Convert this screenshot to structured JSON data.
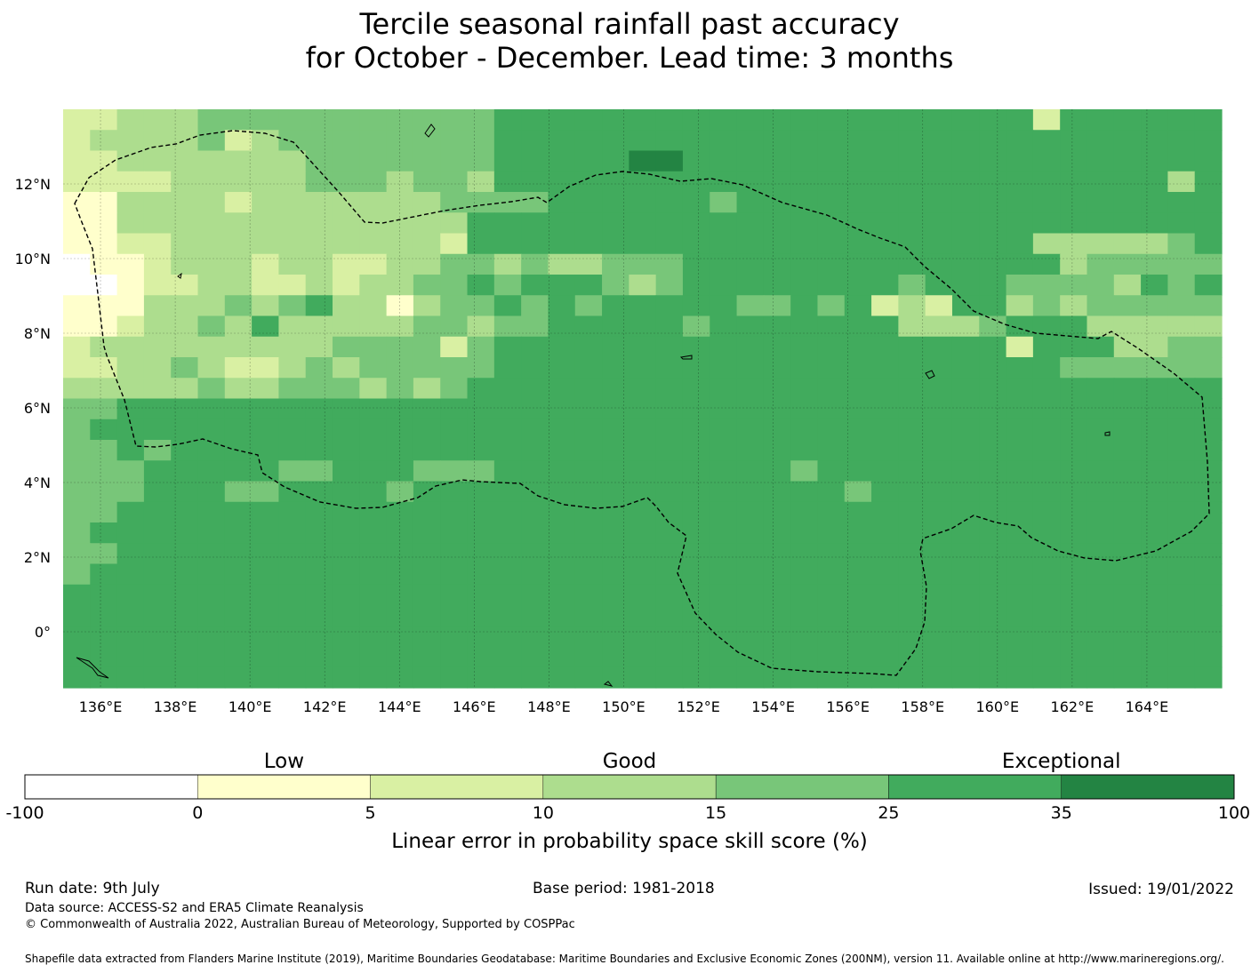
{
  "title_line1": "Tercile seasonal rainfall past accuracy",
  "title_line2": "for October - December. Lead time: 3 months",
  "map": {
    "lon_ticks": [
      "136°E",
      "138°E",
      "140°E",
      "142°E",
      "144°E",
      "146°E",
      "148°E",
      "150°E",
      "152°E",
      "154°E",
      "156°E",
      "158°E",
      "160°E",
      "162°E",
      "164°E"
    ],
    "lat_ticks": [
      "12°N",
      "10°N",
      "8°N",
      "6°N",
      "4°N",
      "2°N",
      "0°"
    ],
    "grid": "on",
    "boundary_line": "dashed"
  },
  "colorbar": {
    "category_labels": [
      "Low",
      "Good",
      "Exceptional"
    ],
    "tick_labels": [
      "-100",
      "0",
      "5",
      "10",
      "15",
      "25",
      "35",
      "100"
    ],
    "xlabel": "Linear error in probability space skill score (%)",
    "colors": [
      "#ffffff",
      "#ffffcc",
      "#d9f0a3",
      "#addd8e",
      "#78c679",
      "#41ab5d",
      "#238443"
    ]
  },
  "chart_data": {
    "type": "heatmap",
    "title": "Tercile seasonal rainfall past accuracy for October - December. Lead time: 3 months",
    "x_axis": "longitude",
    "y_axis": "latitude",
    "xlim": [
      135,
      166
    ],
    "ylim": [
      -1.5,
      14
    ],
    "cell_size_deg": 0.833,
    "bins": [
      -100,
      0,
      5,
      10,
      15,
      25,
      35,
      100
    ],
    "bin_colors": [
      "#ffffff",
      "#ffffcc",
      "#d9f0a3",
      "#addd8e",
      "#78c679",
      "#41ab5d",
      "#238443"
    ],
    "row_order": "north to south",
    "grid_rows": [
      "2233344444444444555555555555555555552555555",
      "2333342344444444555555555555555555555555555",
      "2233333334444444555556655555555555555555555",
      "2222333334443443555555555555555555555555535",
      "1133332333333344445555554555555555555555555",
      "1133333333333335555555555555555555555555555",
      "1122333333333325555555555555555555553333345",
      "0112333233223344343344455555555555555344444",
      "0012233223233445455543455555555455544443545",
      "1113334345331344545455555445452325534344444",
      "1123343533333443445555545555555333455533333",
      "2333333333444424555555555555555555525553344",
      "2233432234344444555555555555555555555444444",
      "3333343344434345555555555555555555555555555",
      "4455555555555555555555555555555555555555555",
      "4555555555555555555555555555555555555555555",
      "4454555555555555555555555555555555555555555",
      "4445555544555444555555555554555555555555555",
      "4445554455554555555555555555545555555555555",
      "4455555555555555555555555555555555555555555",
      "4555555555555555555555555555555555555555555",
      "4455555555555555555555555555555555555555555",
      "4555555555555555555555555555555555555555555",
      "5555555555555555555555555555555555555555555",
      "5555555555555555555555555555555555555555555",
      "5555555555555555555555555555555555555555555",
      "5555555555555555555555555555555555555555555",
      "5555555555555555555555555555555555555555555"
    ]
  },
  "footer": {
    "run_date": "Run date: 9th July",
    "base_period": "Base period: 1981-2018",
    "issued": "Issued: 19/01/2022",
    "data_source": "Data source: ACCESS-S2 and ERA5 Climate Reanalysis",
    "copyright": "© Commonwealth of Australia 2022, Australian Bureau of Meteorology, Supported by COSPPac",
    "shapefile_note": "Shapefile data extracted from Flanders Marine Institute (2019), Maritime Boundaries Geodatabase: Maritime Boundaries and Exclusive Economic Zones (200NM), version 11. Available online at http://www.marineregions.org/."
  }
}
